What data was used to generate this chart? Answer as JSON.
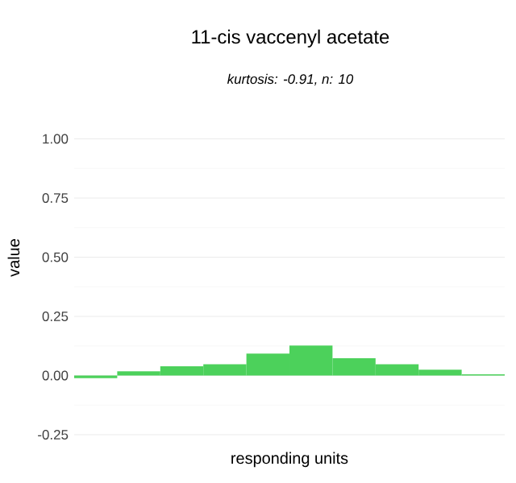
{
  "chart_data": {
    "type": "bar",
    "title": "11-cis vaccenyl acetate",
    "subtitle": "kurtosis: -0.91, n: 10",
    "xlabel": "responding units",
    "ylabel": "value",
    "categories": [
      null,
      null,
      null,
      null,
      null,
      null,
      null,
      null,
      null,
      null
    ],
    "values": [
      -0.011,
      0.018,
      0.039,
      0.048,
      0.093,
      0.127,
      0.073,
      0.048,
      0.025,
      0.005
    ],
    "color": "#4cd15b",
    "ylim": [
      -0.25,
      1
    ],
    "yticks": [
      {
        "value": -0.25,
        "label": "-0.25"
      },
      {
        "value": 0,
        "label": "0.00"
      },
      {
        "value": 0.25,
        "label": "0.25"
      },
      {
        "value": 0.5,
        "label": "0.50"
      },
      {
        "value": 0.75,
        "label": "0.75"
      },
      {
        "value": 1,
        "label": "1.00"
      }
    ],
    "grid": true
  }
}
